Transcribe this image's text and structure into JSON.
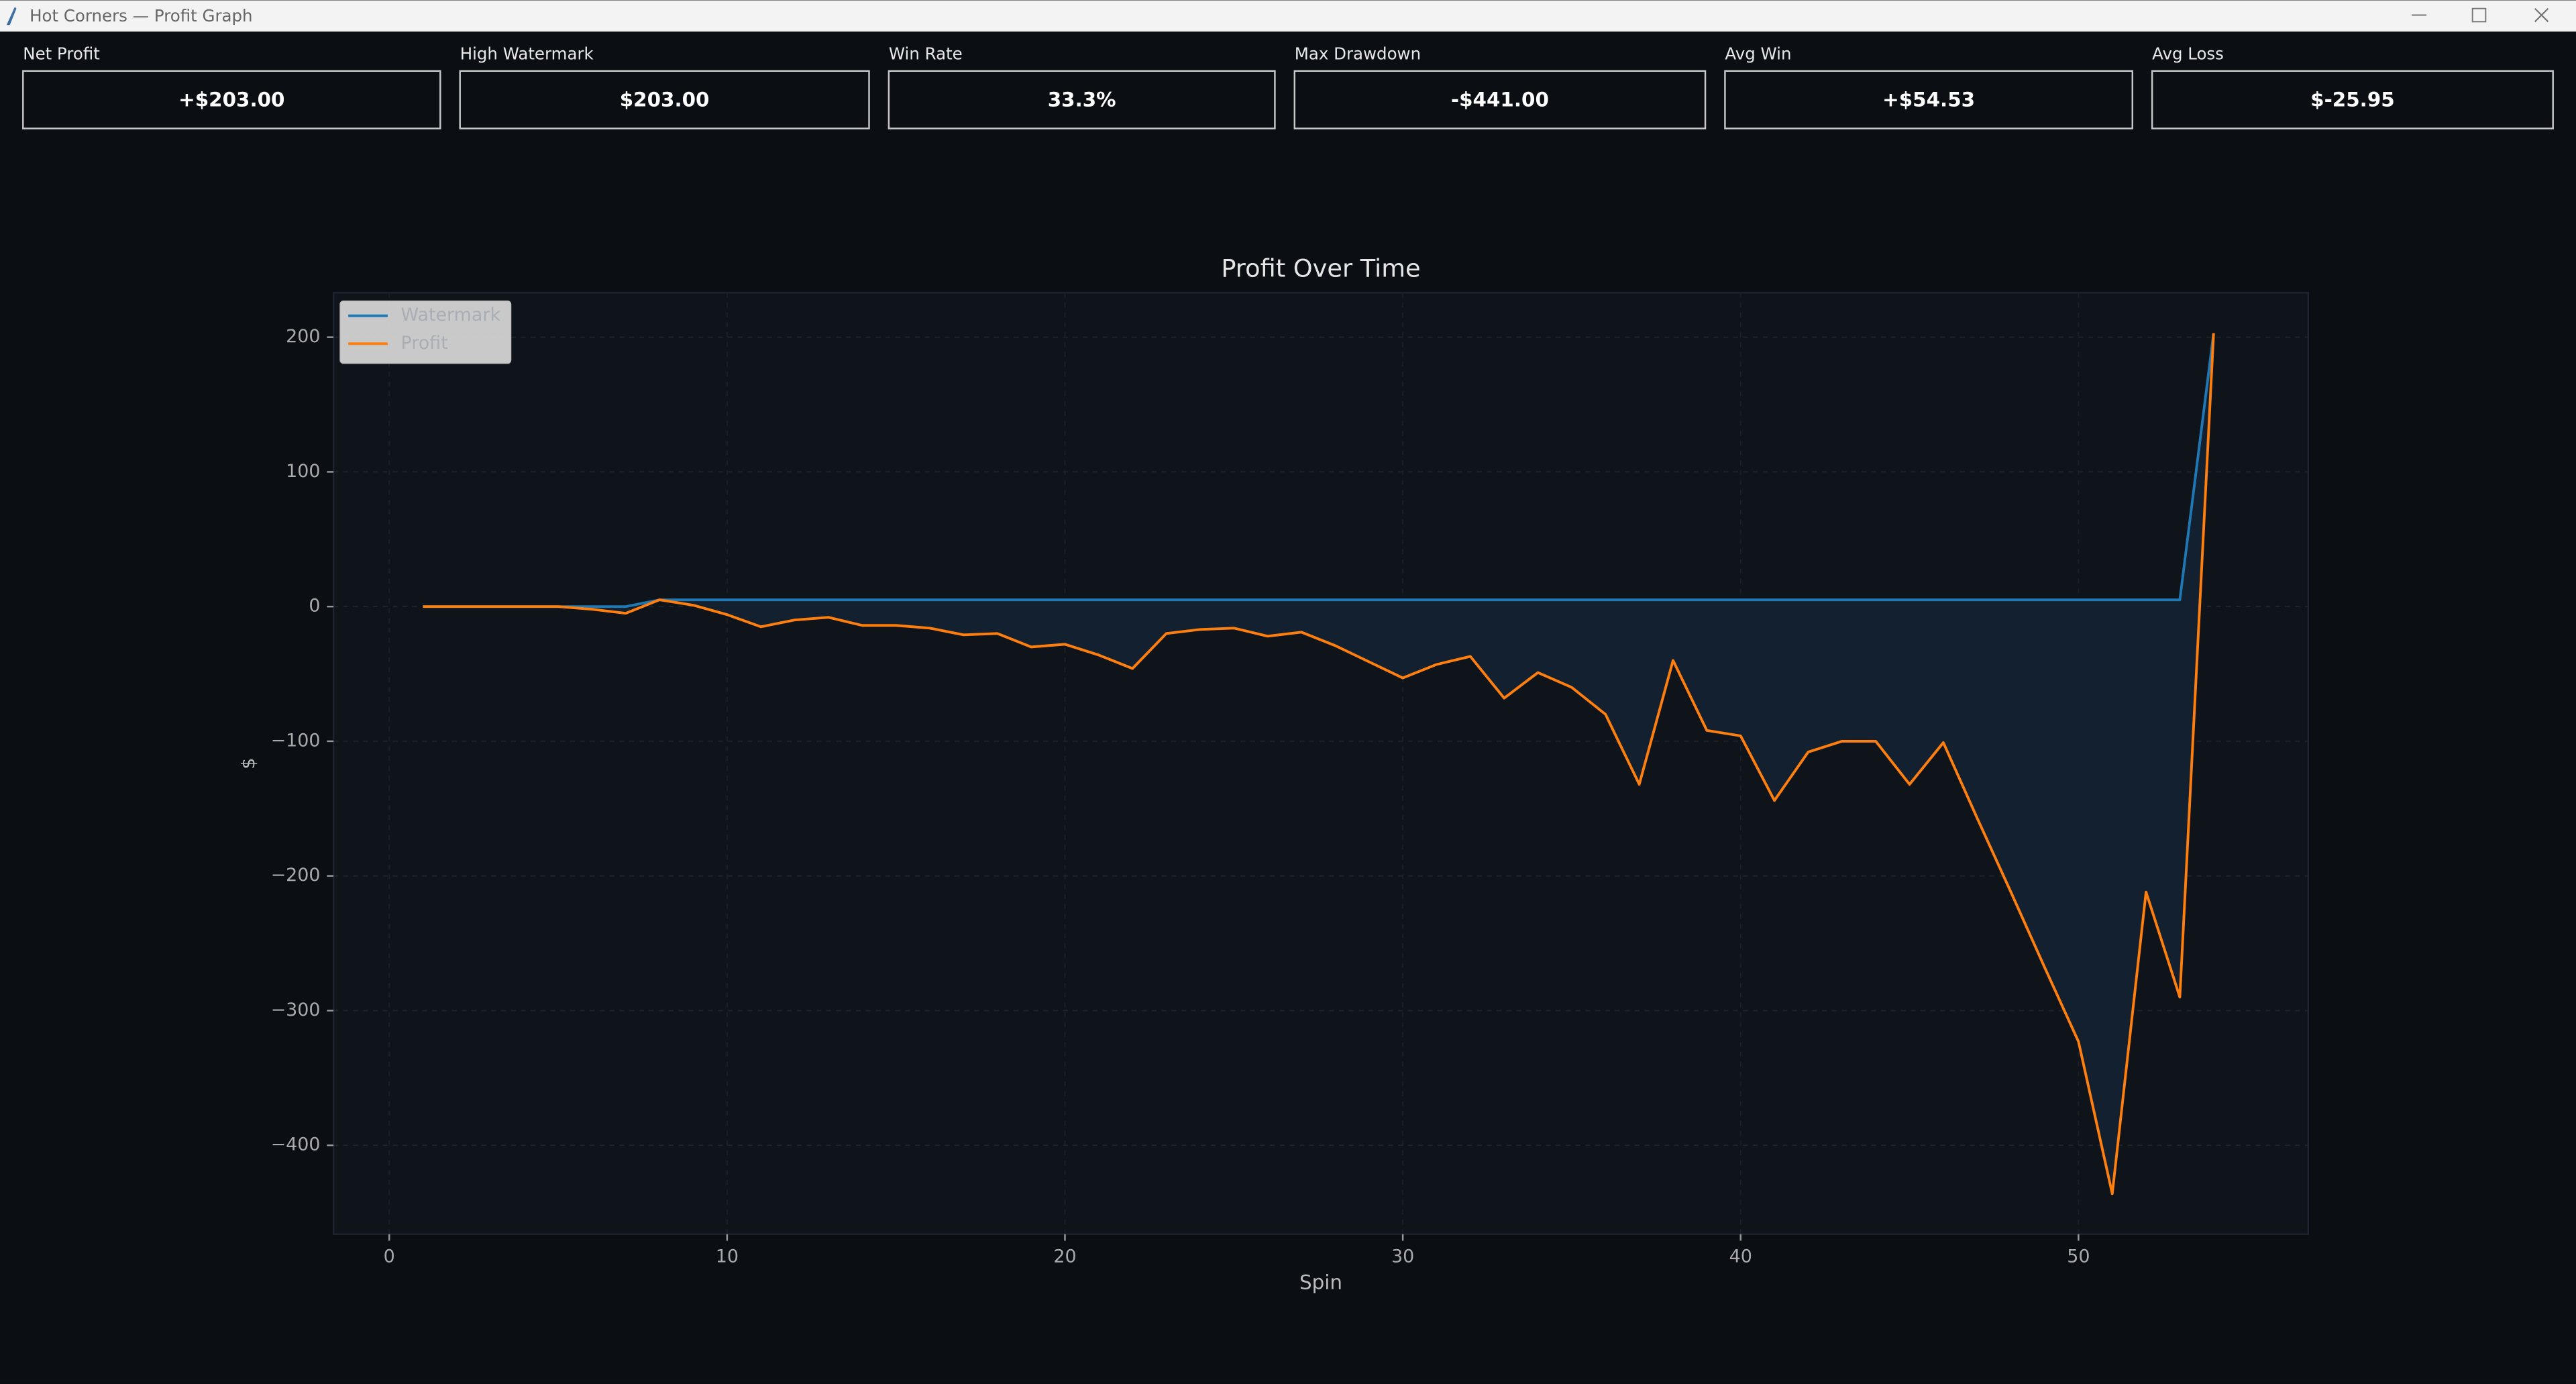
{
  "window_title": "Hot Corners — Profit Graph",
  "stats": [
    {
      "label": "Net Profit",
      "value": "+$203.00"
    },
    {
      "label": "High Watermark",
      "value": "$203.00"
    },
    {
      "label": "Win Rate",
      "value": "33.3%"
    },
    {
      "label": "Max Drawdown",
      "value": "-$441.00"
    },
    {
      "label": "Avg Win",
      "value": "+$54.53"
    },
    {
      "label": "Avg Loss",
      "value": "$-25.95"
    }
  ],
  "chart_data": {
    "type": "line",
    "title": "Profit Over Time",
    "xlabel": "Spin",
    "ylabel": "$",
    "x": [
      1,
      2,
      3,
      4,
      5,
      6,
      7,
      8,
      9,
      10,
      11,
      12,
      13,
      14,
      15,
      16,
      17,
      18,
      19,
      20,
      21,
      22,
      23,
      24,
      25,
      26,
      27,
      28,
      29,
      30,
      31,
      32,
      33,
      34,
      35,
      36,
      37,
      38,
      39,
      40,
      41,
      42,
      43,
      44,
      45,
      46,
      47,
      48,
      49,
      50,
      51,
      52,
      53,
      54
    ],
    "series": [
      {
        "name": "Watermark",
        "color": "#1f77b4",
        "values": [
          0,
          0,
          0,
          0,
          0,
          0,
          0,
          5,
          5,
          5,
          5,
          5,
          5,
          5,
          5,
          5,
          5,
          5,
          5,
          5,
          5,
          5,
          5,
          5,
          5,
          5,
          5,
          5,
          5,
          5,
          5,
          5,
          5,
          5,
          5,
          5,
          5,
          5,
          5,
          5,
          5,
          5,
          5,
          5,
          5,
          5,
          5,
          5,
          5,
          5,
          5,
          5,
          5,
          203
        ]
      },
      {
        "name": "Profit",
        "color": "#ff7f0e",
        "values": [
          0,
          0,
          0,
          0,
          0,
          -2,
          -5,
          5,
          1,
          -6,
          -15,
          -10,
          -8,
          -14,
          -14,
          -16,
          -21,
          -20,
          -30,
          -28,
          -36,
          -46,
          -20,
          -17,
          -16,
          -22,
          -19,
          -29,
          -41,
          -53,
          -43,
          -37,
          -68,
          -49,
          -60,
          -80,
          -132,
          -40,
          -92,
          -96,
          -144,
          -108,
          -100,
          -100,
          -132,
          -101,
          -157,
          -212,
          -268,
          -323,
          -436,
          -212,
          -290,
          203
        ]
      }
    ],
    "area_color": "#13202f",
    "xlim": [
      -1.65,
      56.8
    ],
    "ylim": [
      -466,
      233
    ],
    "xticks": [
      0,
      10,
      20,
      30,
      40,
      50
    ],
    "yticks": [
      {
        "value": -400,
        "label": "−400"
      },
      {
        "value": -300,
        "label": "−300"
      },
      {
        "value": -200,
        "label": "−200"
      },
      {
        "value": -100,
        "label": "−100"
      },
      0,
      100,
      200
    ],
    "grid": true,
    "legend": "upper-left"
  }
}
